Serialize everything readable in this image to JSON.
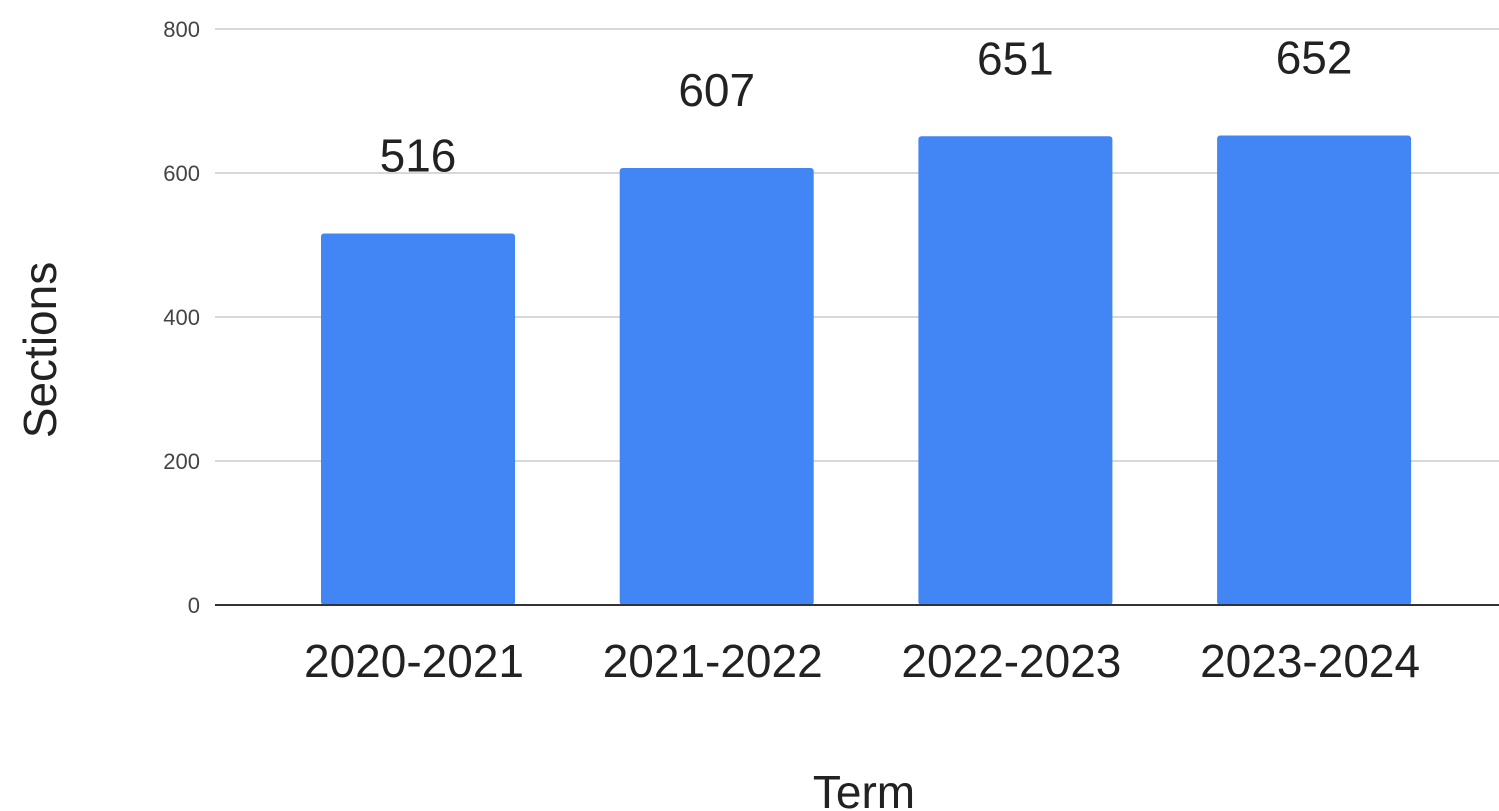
{
  "chart_data": {
    "type": "bar",
    "categories": [
      "2020-2021",
      "2021-2022",
      "2022-2023",
      "2023-2024"
    ],
    "values": [
      516,
      607,
      651,
      652
    ],
    "data_labels": [
      "516",
      "607",
      "651",
      "652"
    ],
    "title": "",
    "xlabel": "Term",
    "ylabel": "Sections",
    "ylim": [
      0,
      800
    ],
    "yticks": [
      0,
      200,
      400,
      600,
      800
    ],
    "ytick_labels": [
      "0",
      "200",
      "400",
      "600",
      "800"
    ],
    "grid": true,
    "legend": "none",
    "bar_color": "#4285f4"
  }
}
